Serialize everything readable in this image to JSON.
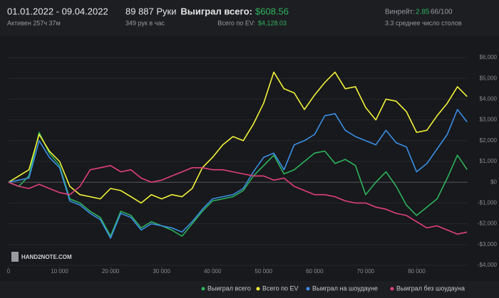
{
  "header": {
    "date_range": "01.01.2022 - 09.04.2022",
    "active": "Активен 257ч 37м",
    "hands": "89 887 Руки",
    "hands_per_hour": "349 рук в час",
    "won_label": "Выиграл всего:",
    "won_value": "$608.56",
    "ev_label": "Всего по EV:",
    "ev_value": "$4,128.03",
    "winrate_label": "Винрейт:",
    "winrate_value": "2.85",
    "winrate_extra": "66/100",
    "tables": "3.3 среднее число столов",
    "logo": "HAND2NOTE.COM"
  },
  "chart_data": {
    "type": "line",
    "x": [
      0,
      2000,
      4000,
      6000,
      8000,
      10000,
      12000,
      14000,
      16000,
      18000,
      20000,
      22000,
      24000,
      26000,
      28000,
      30000,
      32000,
      34000,
      36000,
      38000,
      40000,
      42000,
      44000,
      46000,
      48000,
      50000,
      52000,
      54000,
      56000,
      58000,
      60000,
      62000,
      64000,
      66000,
      68000,
      70000,
      72000,
      74000,
      76000,
      78000,
      80000,
      82000,
      84000,
      86000,
      88000,
      89887
    ],
    "series": [
      {
        "name": "Выиграл всего",
        "color": "#2db35d",
        "values": [
          0,
          -200,
          300,
          2400,
          1400,
          800,
          -800,
          -1000,
          -1400,
          -1700,
          -2600,
          -1400,
          -1600,
          -2200,
          -1900,
          -2100,
          -2300,
          -2600,
          -2000,
          -1400,
          -900,
          -800,
          -700,
          -400,
          300,
          800,
          1300,
          400,
          600,
          1000,
          1400,
          1500,
          900,
          1100,
          800,
          -600,
          0,
          500,
          -200,
          -1100,
          -1600,
          -1200,
          -800,
          200,
          1300,
          608.56
        ]
      },
      {
        "name": "Всего по EV",
        "color": "#f2f23a",
        "values": [
          0,
          300,
          600,
          2300,
          1500,
          1000,
          -200,
          -600,
          -700,
          -800,
          -300,
          -400,
          -700,
          -1000,
          -600,
          -800,
          -600,
          -700,
          -300,
          700,
          1200,
          1800,
          2200,
          2000,
          2800,
          3800,
          5300,
          4500,
          4300,
          3500,
          4200,
          4800,
          5300,
          4500,
          4600,
          3600,
          3000,
          4000,
          3900,
          3400,
          2400,
          2500,
          3200,
          3800,
          4600,
          4128.03
        ]
      },
      {
        "name": "Выиграл на шоудауне",
        "color": "#3a8ee6",
        "values": [
          0,
          100,
          200,
          2000,
          1200,
          700,
          -900,
          -1100,
          -1500,
          -1800,
          -2700,
          -1500,
          -1700,
          -2300,
          -2000,
          -2100,
          -2200,
          -2400,
          -1900,
          -1300,
          -800,
          -700,
          -600,
          -300,
          500,
          1200,
          1400,
          600,
          1800,
          2000,
          2300,
          3200,
          3300,
          2500,
          2200,
          2000,
          1800,
          2500,
          1900,
          1700,
          500,
          900,
          1600,
          2300,
          3500,
          2900
        ]
      },
      {
        "name": "Выиграл без шоудауна",
        "color": "#e0407a",
        "values": [
          0,
          -200,
          -300,
          -100,
          -300,
          -500,
          -600,
          -200,
          600,
          700,
          800,
          500,
          600,
          200,
          0,
          100,
          300,
          500,
          700,
          700,
          600,
          600,
          500,
          400,
          300,
          300,
          100,
          200,
          -200,
          -400,
          -600,
          -600,
          -700,
          -900,
          -1000,
          -1000,
          -1200,
          -1300,
          -1500,
          -1600,
          -1900,
          -2200,
          -2100,
          -2300,
          -2500,
          -2400
        ]
      }
    ],
    "xlim": [
      0,
      90000
    ],
    "xticks": [
      0,
      {
        "value": 10000,
        "label": "10 000"
      },
      {
        "value": 20000,
        "label": "20 000"
      },
      {
        "value": 30000,
        "label": "30 000"
      },
      {
        "value": 40000,
        "label": "40 000"
      },
      {
        "value": 50000,
        "label": "50 000"
      },
      {
        "value": 60000,
        "label": "60 000"
      },
      {
        "value": 70000,
        "label": "70 000"
      },
      {
        "value": 80000,
        "label": "80 000"
      }
    ],
    "ylim": [
      -4000,
      6000
    ],
    "yticks": [
      {
        "value": -4000,
        "label": "-$4,000"
      },
      {
        "value": -3000,
        "label": "-$3,000"
      },
      {
        "value": -2000,
        "label": "-$2,000"
      },
      {
        "value": -1000,
        "label": "-$1,000"
      },
      {
        "value": 0,
        "label": "$0"
      },
      {
        "value": 1000,
        "label": "$1,000"
      },
      {
        "value": 2000,
        "label": "$2,000"
      },
      {
        "value": 3000,
        "label": "$3,000"
      },
      {
        "value": 4000,
        "label": "$4,000"
      },
      {
        "value": 5000,
        "label": "$5,000"
      },
      {
        "value": 6000,
        "label": "$6,000"
      }
    ],
    "grid": true
  }
}
